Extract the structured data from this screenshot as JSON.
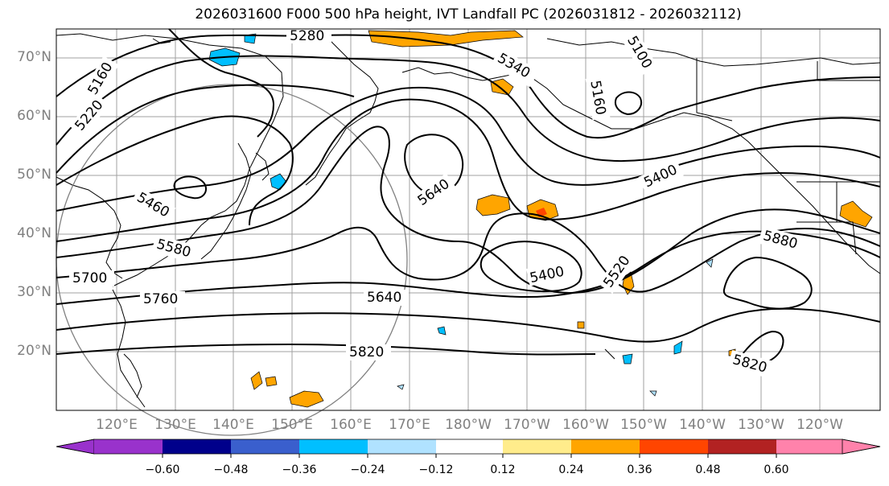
{
  "title": "2026031600 F000 500 hPa height, IVT Landfall PC (2026031812 - 2026032112)",
  "lat_labels": [
    "70°N",
    "60°N",
    "50°N",
    "40°N",
    "30°N",
    "20°N"
  ],
  "lon_labels": [
    "120°E",
    "130°E",
    "140°E",
    "150°E",
    "160°E",
    "170°E",
    "180°W",
    "170°W",
    "160°W",
    "150°W",
    "140°W",
    "130°W",
    "120°W"
  ],
  "contour_labels": [
    "5280",
    "5340",
    "5100",
    "5160",
    "5160",
    "5220",
    "5400",
    "5460",
    "5580",
    "5640",
    "5700",
    "5760",
    "5640",
    "5400",
    "5520",
    "5880",
    "5820",
    "5820"
  ],
  "colorbar": {
    "ticks": [
      "−0.60",
      "−0.48",
      "−0.36",
      "−0.24",
      "−0.12",
      "0.12",
      "0.24",
      "0.36",
      "0.48",
      "0.60"
    ],
    "colors": [
      "#9932cc",
      "#00008b",
      "#3a5fcd",
      "#00bfff",
      "#b0e2ff",
      "#ffffff",
      "#ffec8b",
      "#ffa500",
      "#ff4500",
      "#b22222",
      "#ff82ab"
    ]
  },
  "map_colors": {
    "land_outline": "#000000",
    "contour": "#000000",
    "grid": "#a0a0a0",
    "circle": "#808080"
  }
}
